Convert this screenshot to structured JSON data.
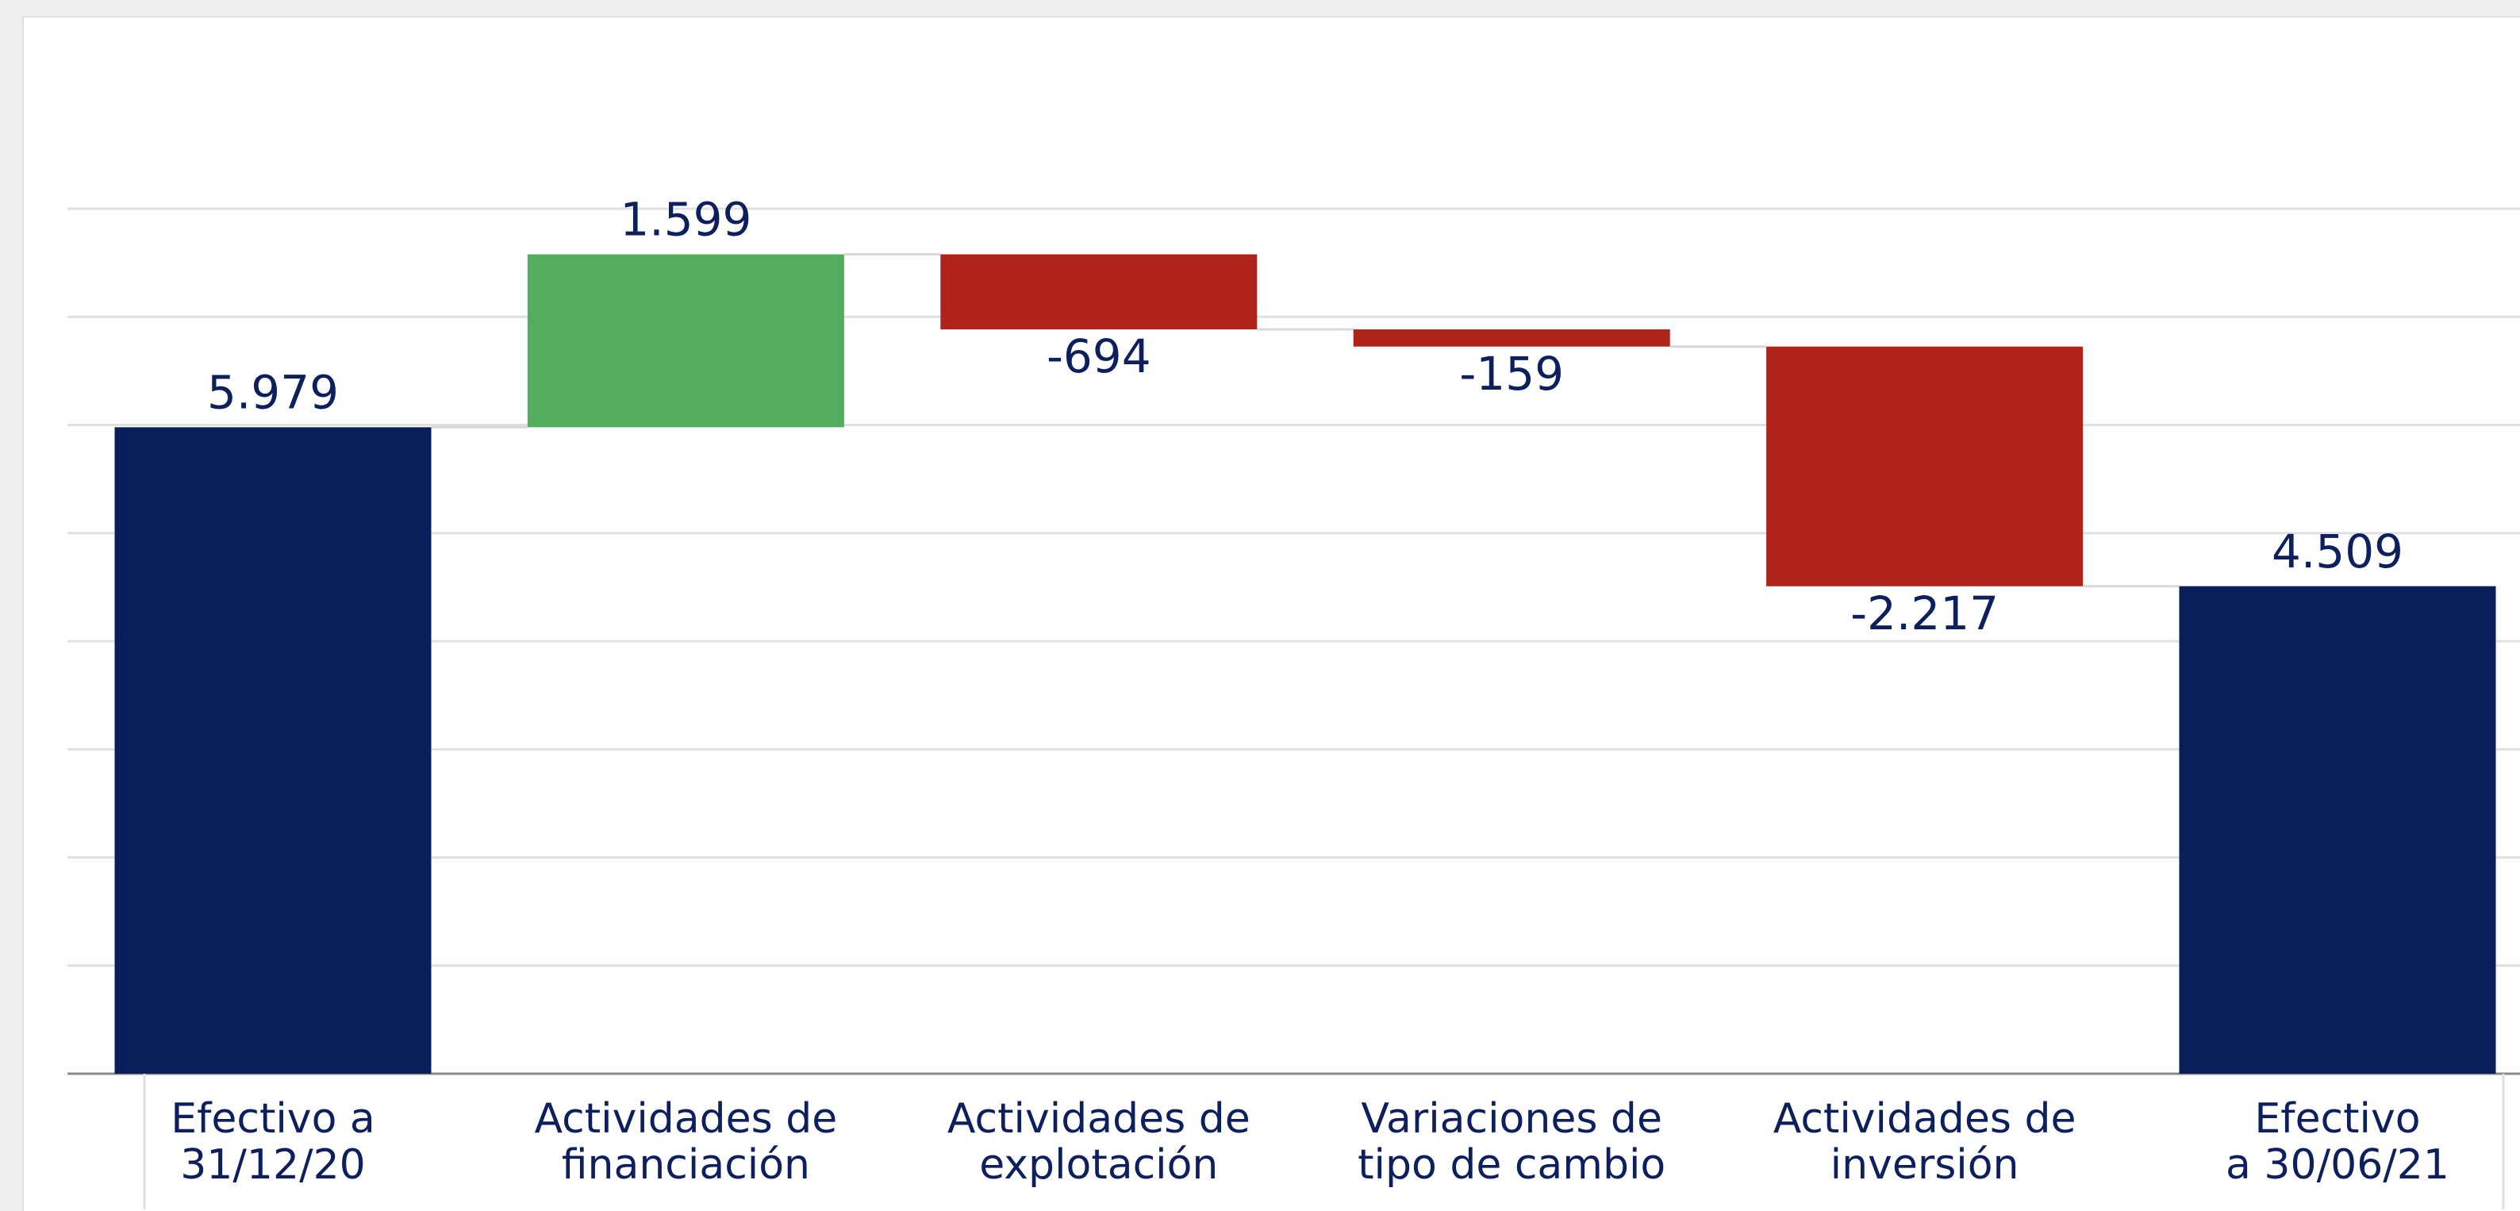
{
  "chart_data": {
    "type": "waterfall",
    "categories": [
      "Efectivo a\n31/12/20",
      "Actividades de\nfinanciación",
      "Actividades de\nexplotación",
      "Variaciones de\ntipo de cambio",
      "Actividades de\ninversión",
      "Efectivo\na 30/06/21"
    ],
    "values": [
      5979,
      1599,
      -694,
      -159,
      -2217,
      4509
    ],
    "value_labels": [
      "5.979",
      "1.599",
      "-694",
      "-159",
      "-2.217",
      "4.509"
    ],
    "measure": [
      "total",
      "relative",
      "relative",
      "relative",
      "relative",
      "total"
    ],
    "colors": {
      "total": "#0a1f5a",
      "increase": "#52ae5c",
      "decrease": "#b0231a"
    },
    "ylim": [
      0,
      8000
    ],
    "yticks": [
      0,
      1000,
      2000,
      3000,
      4000,
      5000,
      6000,
      7000,
      8000
    ],
    "grid": true
  }
}
